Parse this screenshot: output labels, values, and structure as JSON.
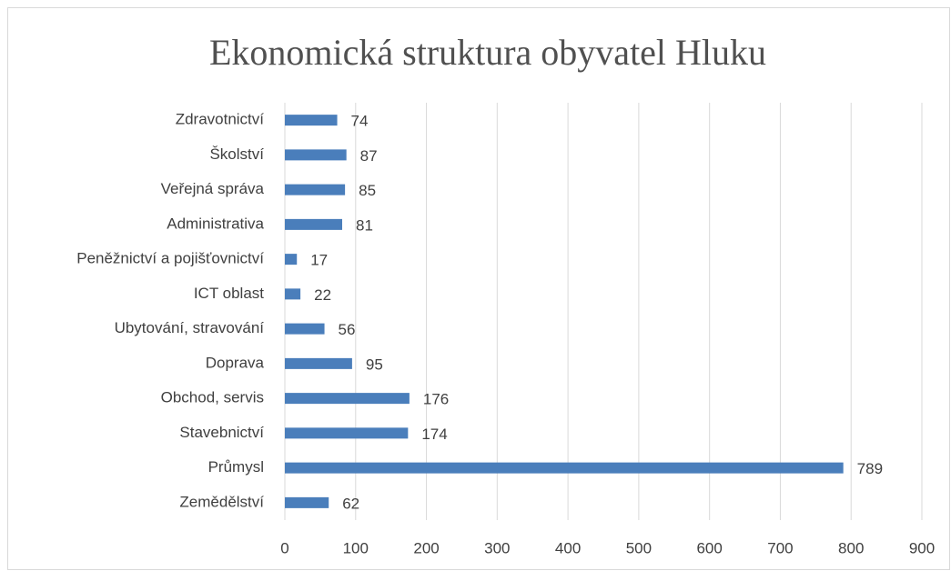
{
  "chart_data": {
    "type": "hbar",
    "title": "Ekonomická struktura obyvatel Hluku",
    "categories": [
      "Zdravotnictví",
      "Školství",
      "Veřejná správa",
      "Administrativa",
      "Peněžnictví a pojišťovnictví",
      "ICT oblast",
      "Ubytování, stravování",
      "Doprava",
      "Obchod, servis",
      "Stavebnictví",
      "Průmysl",
      "Zemědělství"
    ],
    "values": [
      74,
      87,
      85,
      81,
      17,
      22,
      56,
      95,
      176,
      174,
      789,
      62
    ],
    "color": "#4a7ebb",
    "xlim": [
      0,
      900
    ],
    "xticks": [
      0,
      100,
      200,
      300,
      400,
      500,
      600,
      700,
      800,
      900
    ],
    "grid": true
  }
}
